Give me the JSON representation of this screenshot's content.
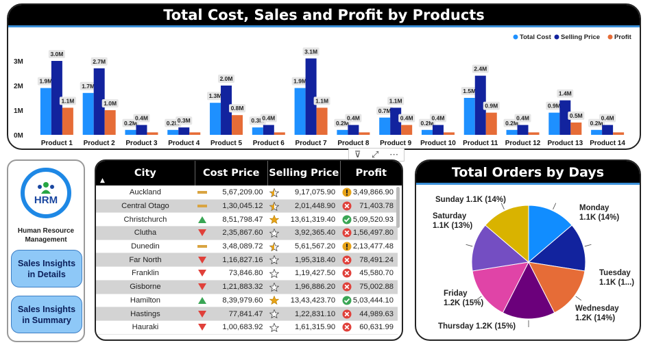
{
  "chart_data": [
    {
      "type": "bar",
      "title": "Total Cost, Sales and Profit by Products",
      "categories": [
        "Product 1",
        "Product 2",
        "Product 3",
        "Product 4",
        "Product 5",
        "Product 6",
        "Product 7",
        "Product 8",
        "Product 9",
        "Product 10",
        "Product 11",
        "Product 12",
        "Product 13",
        "Product 14"
      ],
      "series": [
        {
          "name": "Total Cost",
          "color": "#1e90ff",
          "values": [
            1.9,
            1.7,
            0.2,
            0.2,
            1.3,
            0.3,
            1.9,
            0.2,
            0.7,
            0.2,
            1.5,
            0.2,
            0.9,
            0.2
          ],
          "labels": [
            "1.9M",
            "1.7M",
            "0.2M",
            "0.2M",
            "1.3M",
            "0.3M",
            "1.9M",
            "0.2M",
            "0.7M",
            "0.2M",
            "1.5M",
            "0.2M",
            "0.9M",
            "0.2M"
          ]
        },
        {
          "name": "Selling Price",
          "color": "#12239e",
          "values": [
            3.0,
            2.7,
            0.4,
            0.3,
            2.0,
            0.4,
            3.1,
            0.4,
            1.1,
            0.4,
            2.4,
            0.4,
            1.4,
            0.4
          ],
          "labels": [
            "3.0M",
            "2.7M",
            "0.4M",
            "0.3M",
            "2.0M",
            "0.4M",
            "3.1M",
            "0.4M",
            "1.1M",
            "0.4M",
            "2.4M",
            "0.4M",
            "1.4M",
            "0.4M"
          ]
        },
        {
          "name": "Profit",
          "color": "#e66c37",
          "values": [
            1.1,
            1.0,
            0.1,
            0.1,
            0.8,
            0.1,
            1.1,
            0.1,
            0.4,
            0.1,
            0.9,
            0.1,
            0.5,
            0.1
          ],
          "labels": [
            "1.1M",
            "1.0M",
            "",
            "",
            "0.8M",
            "",
            "1.1M",
            "",
            "0.4M",
            "",
            "0.9M",
            "",
            "0.5M",
            ""
          ]
        }
      ],
      "yticks": [
        "0M",
        "1M",
        "2M",
        "3M"
      ],
      "ylim": [
        0,
        3.3
      ],
      "legend": "top-right"
    },
    {
      "type": "pie",
      "title": "Total Orders by Days",
      "slices": [
        {
          "label": "Monday",
          "value": 1100,
          "text": "1.1K (14%)",
          "color": "#118dff"
        },
        {
          "label": "Tuesday",
          "value": 1100,
          "text": "1.1K (1...)",
          "color": "#12239e"
        },
        {
          "label": "Wednesday",
          "value": 1200,
          "text": "1.2K (14%)",
          "color": "#e66c37"
        },
        {
          "label": "Thursday",
          "value": 1200,
          "text": "1.2K (15%)",
          "color": "#6b007b"
        },
        {
          "label": "Friday",
          "value": 1200,
          "text": "1.2K (15%)",
          "color": "#e044a7"
        },
        {
          "label": "Saturday",
          "value": 1100,
          "text": "1.1K (13%)",
          "color": "#744ec2"
        },
        {
          "label": "Sunday",
          "value": 1100,
          "text": "1.1K (14%)",
          "color": "#d9b300"
        }
      ]
    }
  ],
  "sidebar": {
    "logo_text": "HRM",
    "org_line1": "Human Resource",
    "org_line2": "Management",
    "btn1_line1": "Sales Insights",
    "btn1_line2": "in Details",
    "btn2_line1": "Sales Insights",
    "btn2_line2": "in Summary"
  },
  "toolbar": {
    "filter": "⊽",
    "expand": "⤢",
    "more": "⋯"
  },
  "table": {
    "headers": [
      "City",
      "Cost Price",
      "Selling Price",
      "Profit"
    ],
    "sort_indicator": "▲",
    "rows": [
      {
        "city": "Auckland",
        "cost": "5,67,209.00",
        "cost_ind": "flat",
        "sell": "9,17,075.90",
        "sell_ind": "half",
        "profit": "3,49,866.90",
        "profit_ind": "warn"
      },
      {
        "city": "Central Otago",
        "cost": "1,30,045.12",
        "cost_ind": "flat",
        "sell": "2,01,448.90",
        "sell_ind": "half",
        "profit": "71,403.78",
        "profit_ind": "bad"
      },
      {
        "city": "Christchurch",
        "cost": "8,51,798.47",
        "cost_ind": "up",
        "sell": "13,61,319.40",
        "sell_ind": "full",
        "profit": "5,09,520.93",
        "profit_ind": "good"
      },
      {
        "city": "Clutha",
        "cost": "2,35,867.60",
        "cost_ind": "down",
        "sell": "3,92,365.40",
        "sell_ind": "empty",
        "profit": "1,56,497.80",
        "profit_ind": "bad"
      },
      {
        "city": "Dunedin",
        "cost": "3,48,089.72",
        "cost_ind": "flat",
        "sell": "5,61,567.20",
        "sell_ind": "half",
        "profit": "2,13,477.48",
        "profit_ind": "warn"
      },
      {
        "city": "Far North",
        "cost": "1,16,827.16",
        "cost_ind": "down",
        "sell": "1,95,318.40",
        "sell_ind": "empty",
        "profit": "78,491.24",
        "profit_ind": "bad"
      },
      {
        "city": "Franklin",
        "cost": "73,846.80",
        "cost_ind": "down",
        "sell": "1,19,427.50",
        "sell_ind": "empty",
        "profit": "45,580.70",
        "profit_ind": "bad"
      },
      {
        "city": "Gisborne",
        "cost": "1,21,883.32",
        "cost_ind": "down",
        "sell": "1,96,886.20",
        "sell_ind": "empty",
        "profit": "75,002.88",
        "profit_ind": "bad"
      },
      {
        "city": "Hamilton",
        "cost": "8,39,979.60",
        "cost_ind": "up",
        "sell": "13,43,423.70",
        "sell_ind": "full",
        "profit": "5,03,444.10",
        "profit_ind": "good"
      },
      {
        "city": "Hastings",
        "cost": "77,841.47",
        "cost_ind": "down",
        "sell": "1,22,831.10",
        "sell_ind": "empty",
        "profit": "44,989.63",
        "profit_ind": "bad"
      },
      {
        "city": "Hauraki",
        "cost": "1,00,683.92",
        "cost_ind": "down",
        "sell": "1,61,315.90",
        "sell_ind": "empty",
        "profit": "60,631.99",
        "profit_ind": "bad"
      }
    ]
  }
}
